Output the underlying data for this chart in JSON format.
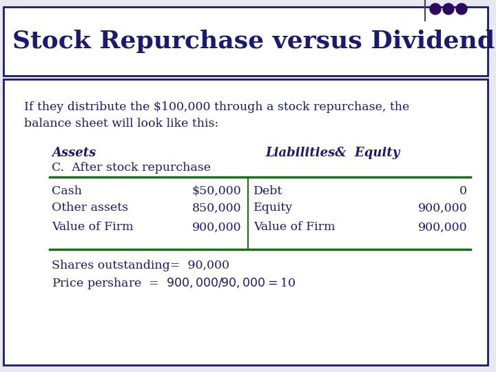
{
  "title": "Stock Repurchase versus Dividend",
  "title_color": "#1a1a6e",
  "title_fontsize": 26,
  "bg_color": "#e8e8f0",
  "box_color": "#1a1a6e",
  "dots_color": "#2a0a5e",
  "text_color": "#1a1a6e",
  "intro_line1": "If they distribute the $100,000 through a stock repurchase, the",
  "intro_line2": "balance sheet will look like this:",
  "intro_fontsize": 12.5,
  "col_header_left": "Assets",
  "col_header_right": "Liabilities&  Equity",
  "col_header_fontsize": 13,
  "section_label": "C.  After stock repurchase",
  "section_fontsize": 12.5,
  "table_line_color": "#1a6e1a",
  "rows": [
    [
      "Cash",
      "$50,000",
      "Debt",
      "0"
    ],
    [
      "Other assets",
      "850,000",
      "Equity",
      "900,000"
    ],
    [
      "Value of Firm",
      "900,000",
      "Value of Firm",
      "900,000"
    ]
  ],
  "footer_lines": [
    "Shares outstanding=  90,000",
    "Price pershare  =  $900,000 /  90,000  =  $10"
  ],
  "footer_fontsize": 12.5,
  "table_fontsize": 12.5
}
